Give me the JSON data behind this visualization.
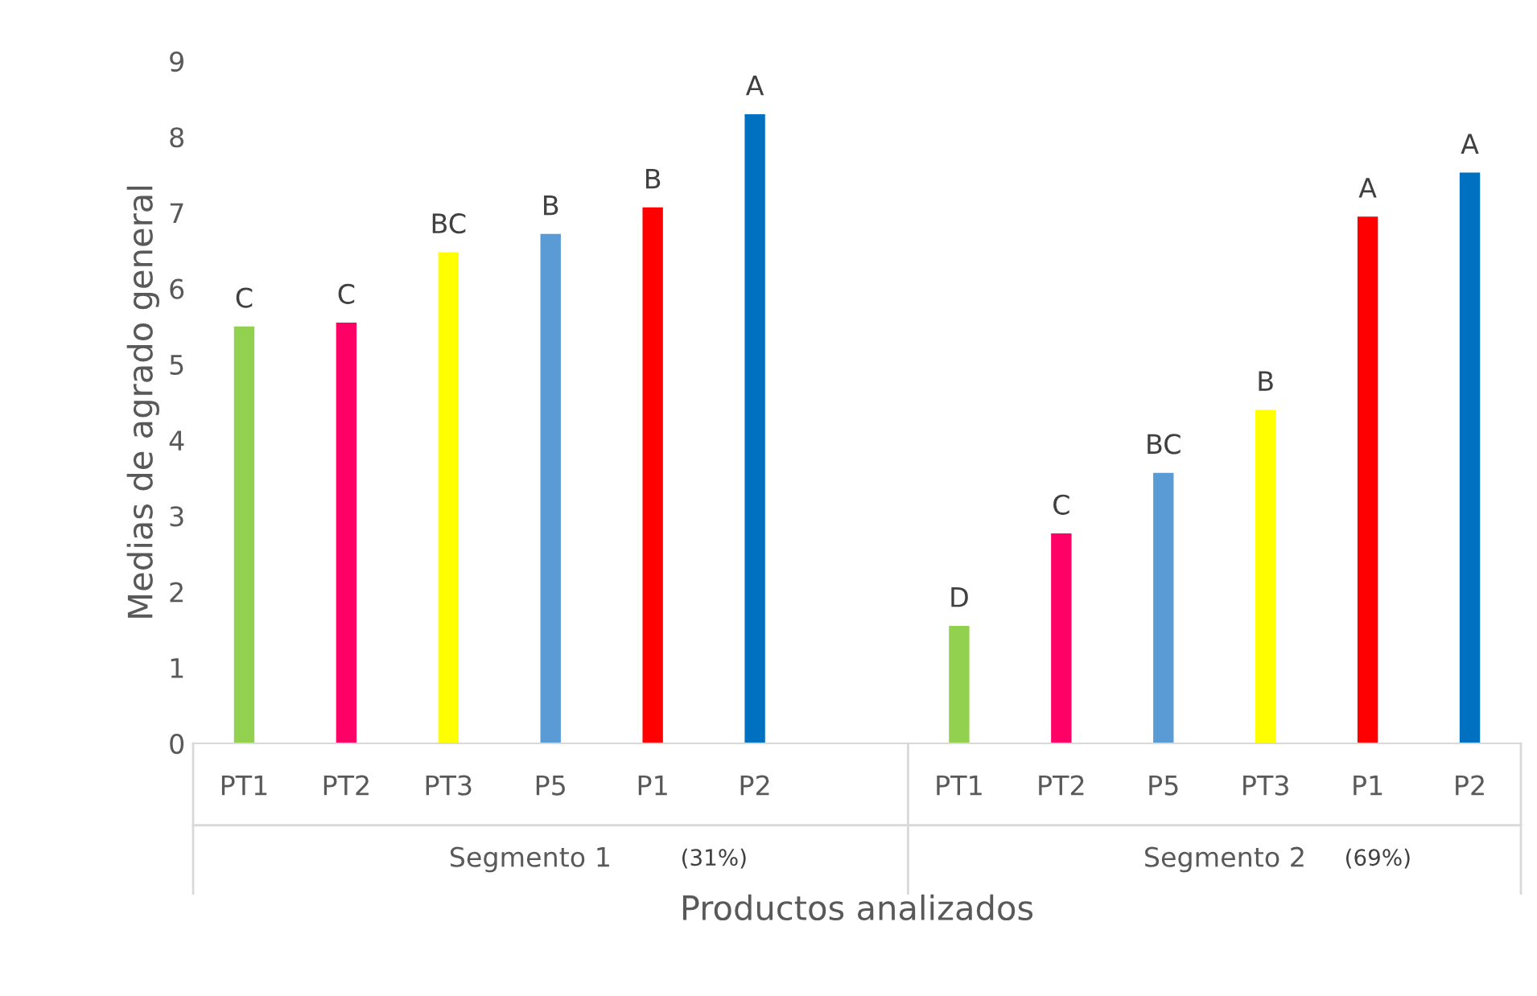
{
  "chart_data": {
    "type": "bar",
    "xlabel": "Productos analizados",
    "ylabel": "Medias de agrado general",
    "categories": [
      "PT1",
      "PT2",
      "PT3",
      "P5",
      "P1",
      "P2",
      null,
      "PT1",
      "PT2",
      "P5",
      "PT3",
      "P1",
      "P2"
    ],
    "values": [
      5.5,
      5.55,
      6.48,
      6.72,
      7.07,
      8.3,
      null,
      1.55,
      2.77,
      3.57,
      4.4,
      6.95,
      7.53
    ],
    "colors": [
      "#92d050",
      "#ff0066",
      "#ffff00",
      "#5b9bd5",
      "#ff0000",
      "#0070c0",
      "#ffffff",
      "#92d050",
      "#ff0066",
      "#5b9bd5",
      "#ffff00",
      "#ff0000",
      "#0070c0"
    ],
    "value_labels": [
      "C",
      "C",
      "BC",
      "B",
      "B",
      "A",
      null,
      "D",
      "C",
      "BC",
      "B",
      "A",
      "A"
    ],
    "ylim": [
      0,
      9
    ],
    "yticks": [
      0,
      1,
      2,
      3,
      4,
      5,
      6,
      7,
      8,
      9
    ],
    "grid": false,
    "legend": false,
    "annotations": [
      "Segmento 1",
      "(31%)",
      "Segmento 2",
      "(69%)"
    ]
  }
}
